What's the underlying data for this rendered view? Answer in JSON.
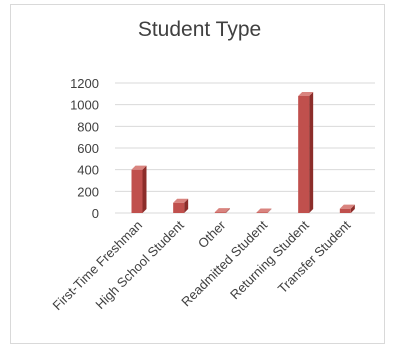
{
  "chart_data": {
    "type": "bar",
    "title": "Student Type",
    "categories": [
      "First-Time Freshman",
      "High School Student",
      "Other",
      "Readmitted Student",
      "Returning Student",
      "Transfer Student"
    ],
    "values": [
      400,
      95,
      8,
      5,
      1080,
      40
    ],
    "ylim": [
      0,
      1200
    ],
    "yticks": [
      0,
      200,
      400,
      600,
      800,
      1000,
      1200
    ],
    "grid": true,
    "bar_color": "#c0504d",
    "bar_side_color": "#8c2d2a",
    "bar_top_color": "#d9847f"
  }
}
